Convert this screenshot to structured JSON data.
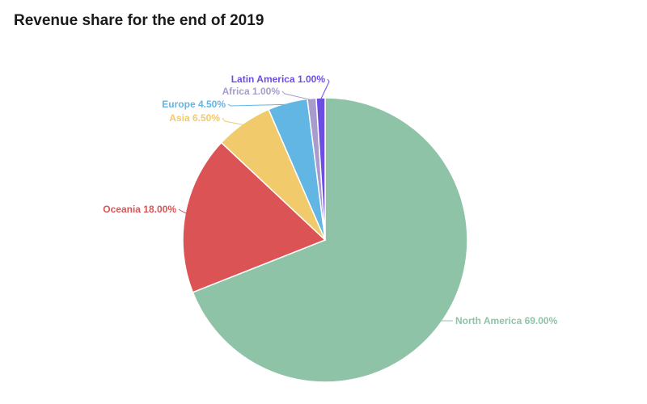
{
  "chart_data": {
    "type": "pie",
    "title": "Revenue share for the end of 2019",
    "slices": [
      {
        "label": "North America",
        "value": 69.0,
        "value_label": "69.00%",
        "color": "#8fc3a7"
      },
      {
        "label": "Oceania",
        "value": 18.0,
        "value_label": "18.00%",
        "color": "#dc5356"
      },
      {
        "label": "Asia",
        "value": 6.5,
        "value_label": "6.50%",
        "color": "#f0ca6b"
      },
      {
        "label": "Europe",
        "value": 4.5,
        "value_label": "4.50%",
        "color": "#62b6e4"
      },
      {
        "label": "Africa",
        "value": 1.0,
        "value_label": "1.00%",
        "color": "#a89ccc"
      },
      {
        "label": "Latin America",
        "value": 1.0,
        "value_label": "1.00%",
        "color": "#6c4ee0"
      }
    ]
  }
}
